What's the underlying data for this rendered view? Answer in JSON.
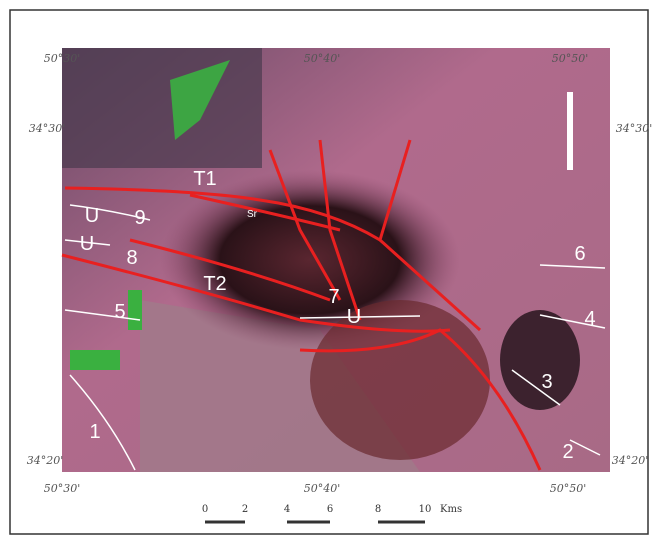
{
  "coordinates": {
    "top": [
      "50°30'",
      "50°40'",
      "50°50'"
    ],
    "bottom": [
      "50°30'",
      "50°40'",
      "50°50'"
    ],
    "left": [
      "34°30'",
      "34°20'"
    ],
    "right": [
      "34°30'",
      "34°20'"
    ]
  },
  "map_labels": [
    "T1",
    "T2",
    "Sr",
    "U",
    "9",
    "U",
    "8",
    "5",
    "7",
    "U",
    "6",
    "4",
    "3",
    "1",
    "2"
  ],
  "scale": {
    "ticks": [
      "0",
      "2",
      "4",
      "6",
      "8",
      "10"
    ],
    "unit": "Kms"
  }
}
